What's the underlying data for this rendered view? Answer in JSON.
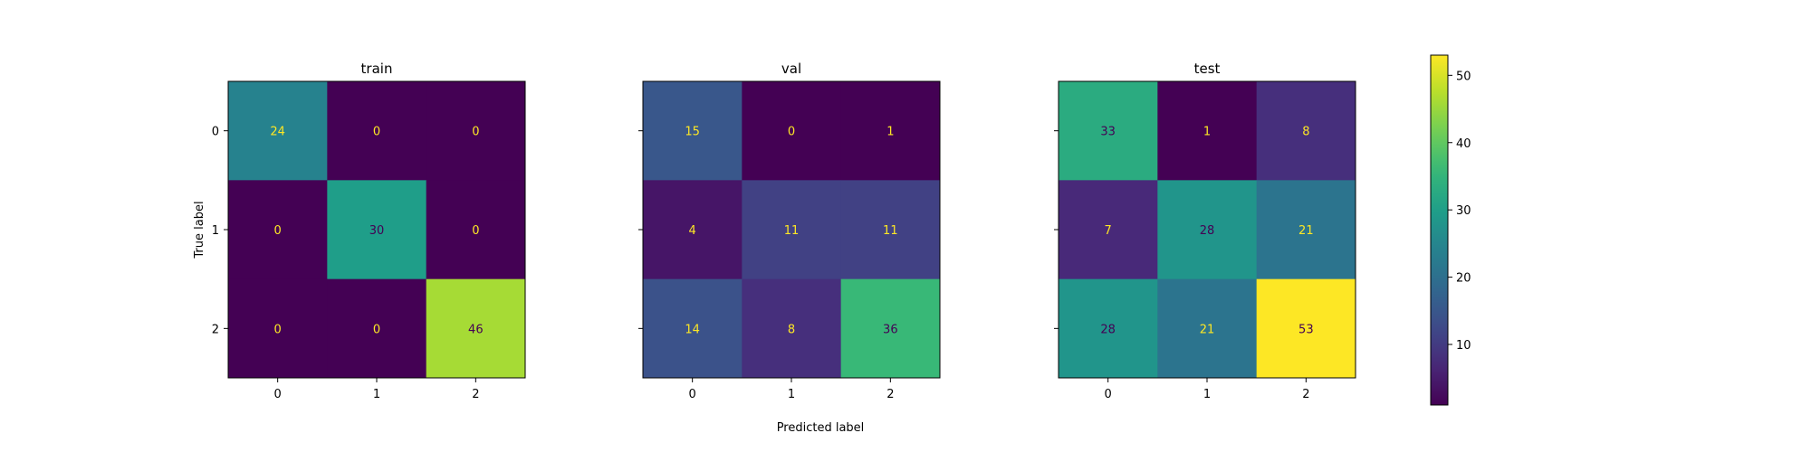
{
  "figure": {
    "xlabel": "Predicted label",
    "ylabel": "True label"
  },
  "chart_data": [
    {
      "type": "heatmap",
      "title": "train",
      "x_ticks": [
        "0",
        "1",
        "2"
      ],
      "y_ticks": [
        "0",
        "1",
        "2"
      ],
      "values": [
        [
          24,
          0,
          0
        ],
        [
          0,
          30,
          0
        ],
        [
          0,
          0,
          46
        ]
      ]
    },
    {
      "type": "heatmap",
      "title": "val",
      "x_ticks": [
        "0",
        "1",
        "2"
      ],
      "y_ticks": [
        "0",
        "1",
        "2"
      ],
      "values": [
        [
          15,
          0,
          1
        ],
        [
          4,
          11,
          11
        ],
        [
          14,
          8,
          36
        ]
      ]
    },
    {
      "type": "heatmap",
      "title": "test",
      "x_ticks": [
        "0",
        "1",
        "2"
      ],
      "y_ticks": [
        "0",
        "1",
        "2"
      ],
      "values": [
        [
          33,
          1,
          8
        ],
        [
          7,
          28,
          21
        ],
        [
          28,
          21,
          53
        ]
      ]
    }
  ],
  "colorbar": {
    "colormap": "viridis",
    "min": 1,
    "max": 53,
    "ticks": [
      "10",
      "20",
      "30",
      "40",
      "50"
    ]
  }
}
